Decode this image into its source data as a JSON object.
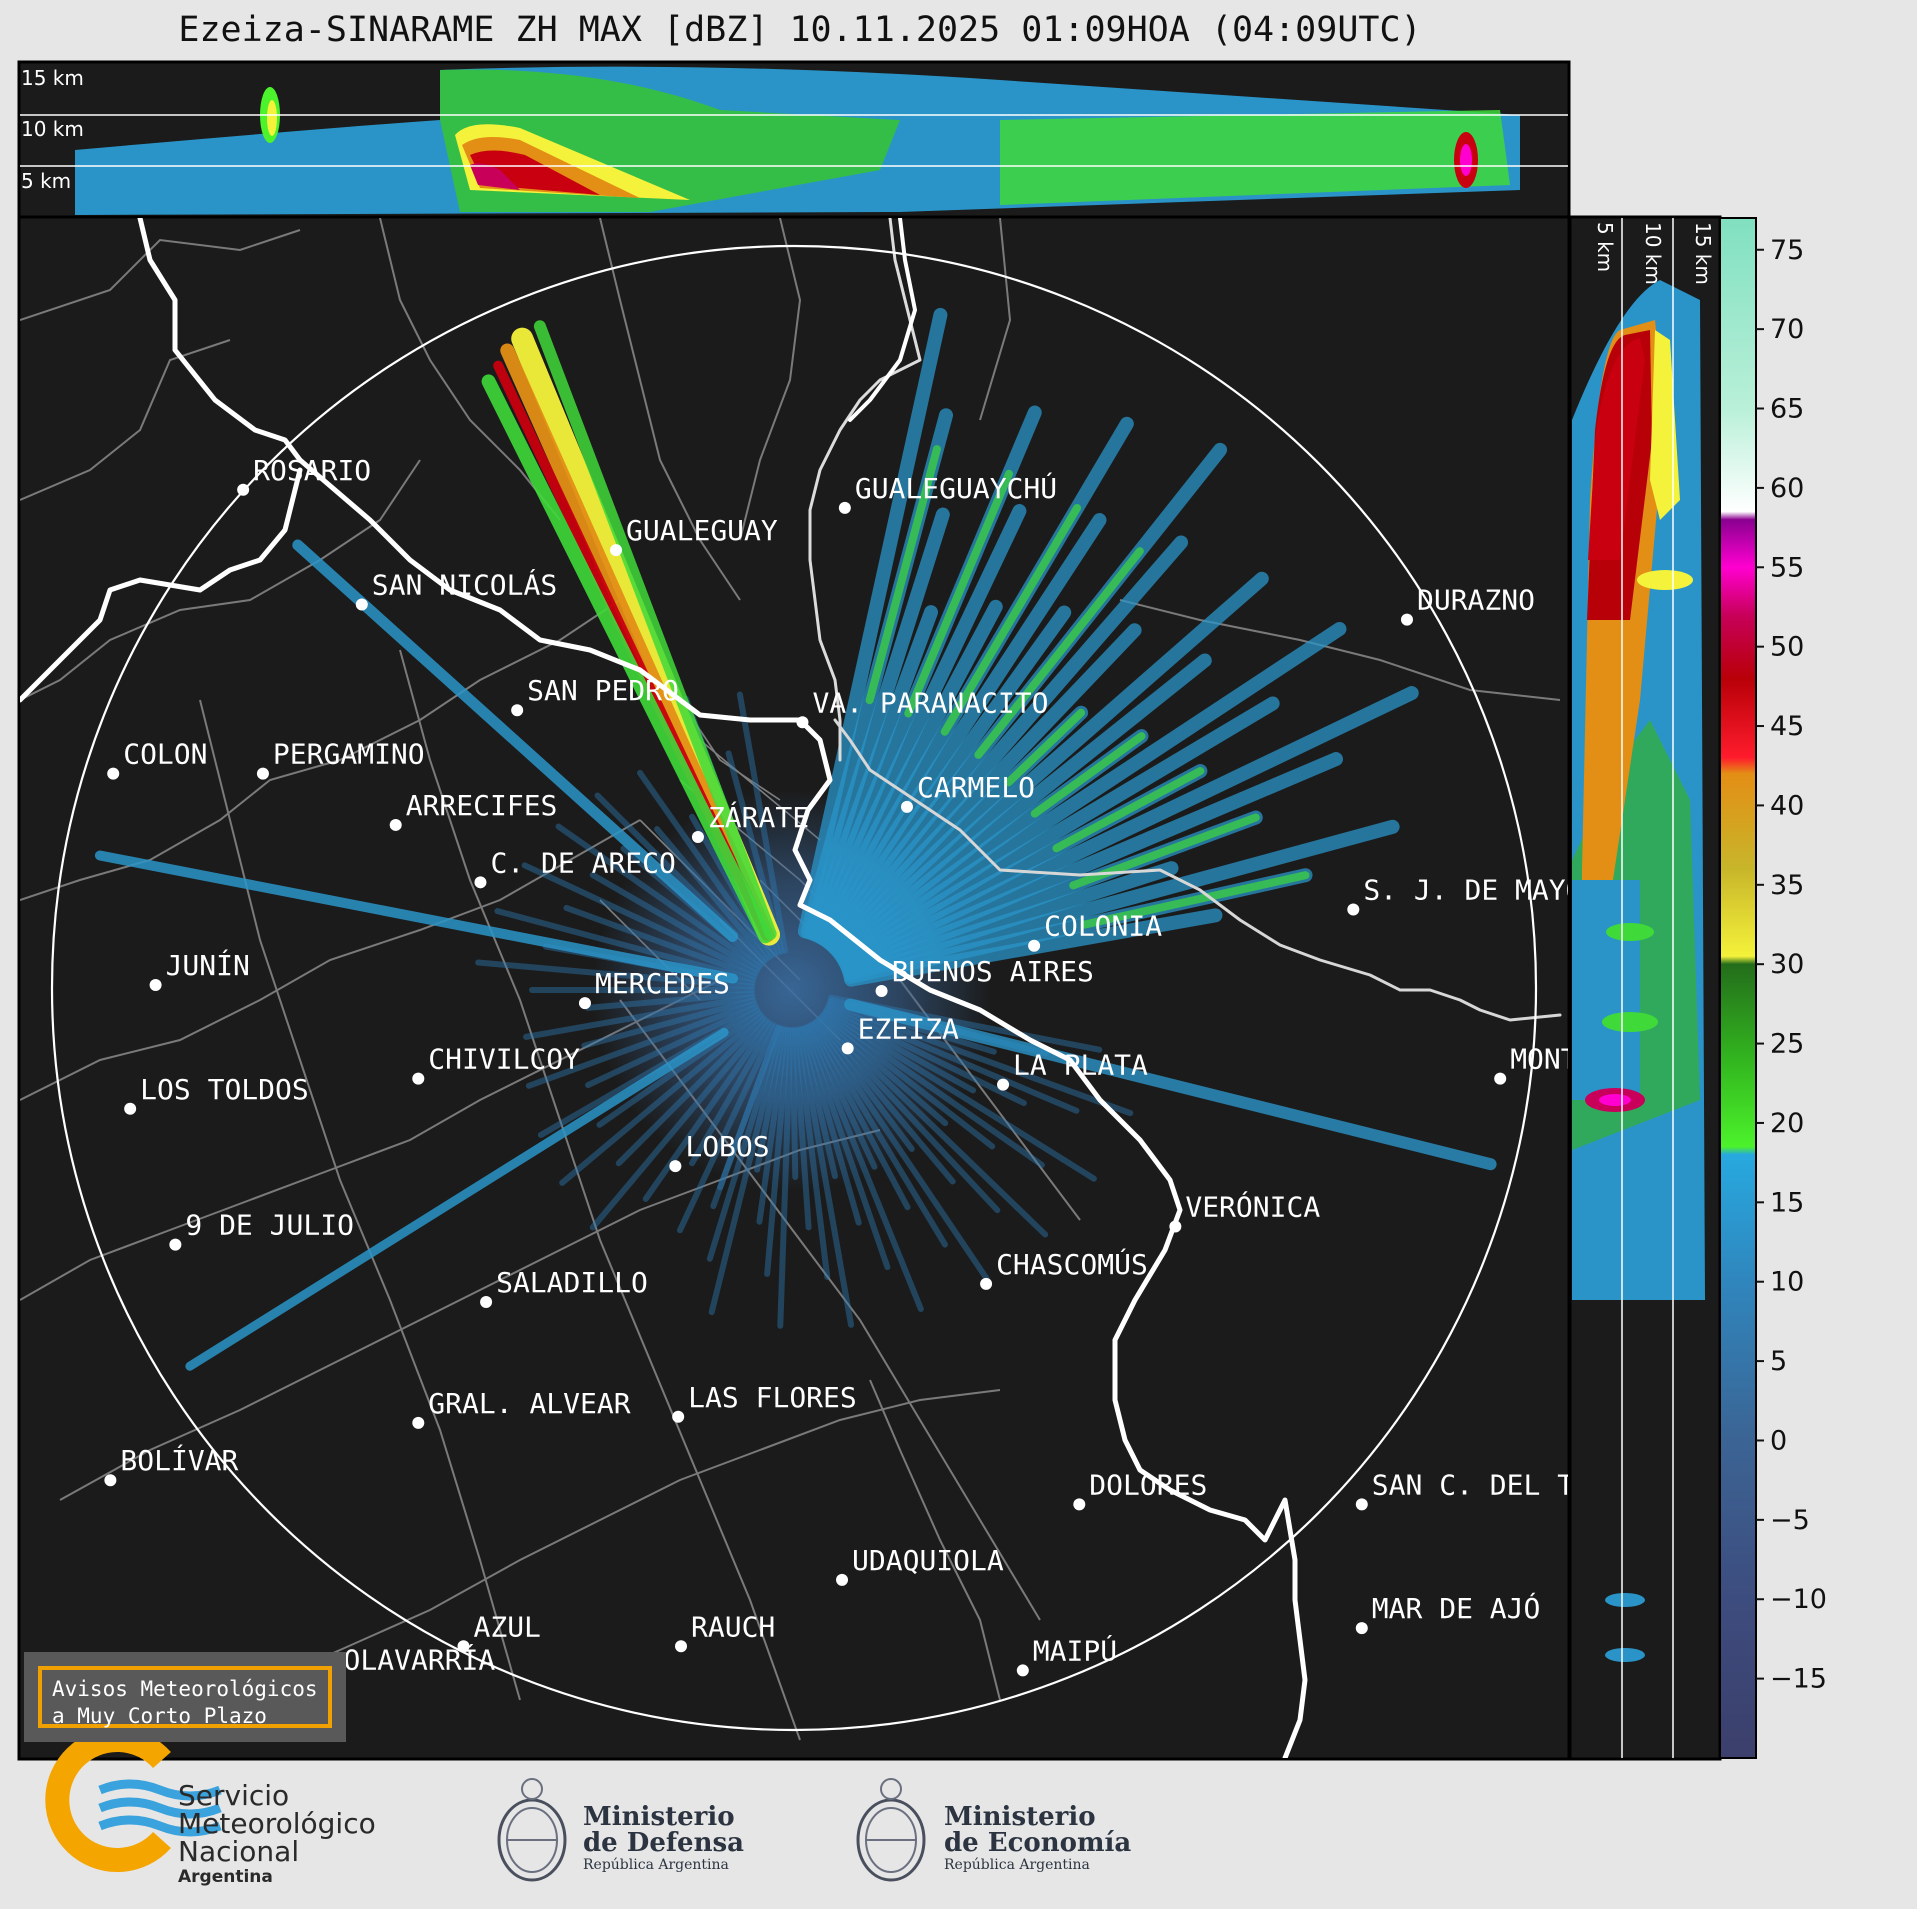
{
  "title": "Ezeiza-SINARAME ZH MAX [dBZ] 10.11.2025 01:09HOA (04:09UTC)",
  "product": "ZH MAX",
  "units": "dBZ",
  "height_labels_top": [
    "15 km",
    "10 km",
    "5 km"
  ],
  "height_labels_side": [
    "5 km",
    "10 km",
    "15 km"
  ],
  "colorbar": {
    "ticks": [
      75,
      70,
      65,
      60,
      55,
      50,
      45,
      40,
      35,
      30,
      25,
      20,
      15,
      10,
      5,
      0,
      -5,
      -10,
      -15
    ],
    "range": [
      -20,
      77
    ],
    "stops": [
      {
        "v": -20,
        "c": "#3c3f6b"
      },
      {
        "v": -10,
        "c": "#3d4c7e"
      },
      {
        "v": 0,
        "c": "#3b6494"
      },
      {
        "v": 10,
        "c": "#2f86bd"
      },
      {
        "v": 18,
        "c": "#27a9df"
      },
      {
        "v": 18.5,
        "c": "#4cf22b"
      },
      {
        "v": 24,
        "c": "#32b51f"
      },
      {
        "v": 30,
        "c": "#246d1b"
      },
      {
        "v": 30.5,
        "c": "#f4f23a"
      },
      {
        "v": 36,
        "c": "#c8b62a"
      },
      {
        "v": 42,
        "c": "#e38e15"
      },
      {
        "v": 43,
        "c": "#ff1c2c"
      },
      {
        "v": 48,
        "c": "#b80008"
      },
      {
        "v": 52,
        "c": "#c8005a"
      },
      {
        "v": 55,
        "c": "#ff00d0"
      },
      {
        "v": 58,
        "c": "#8a0090"
      },
      {
        "v": 58.5,
        "c": "#ffffff"
      },
      {
        "v": 65,
        "c": "#b9f0d9"
      },
      {
        "v": 77,
        "c": "#80e0c0"
      }
    ]
  },
  "cities": [
    {
      "name": "ROSARIO",
      "lon": -60.64,
      "lat": -32.95
    },
    {
      "name": "SAN NICOLÁS",
      "lon": -60.22,
      "lat": -33.33
    },
    {
      "name": "GUALEGUAY",
      "lon": -59.32,
      "lat": -33.15
    },
    {
      "name": "GUALEGUAYCHÚ",
      "lon": -58.51,
      "lat": -33.01
    },
    {
      "name": "DURAZNO",
      "lon": -56.52,
      "lat": -33.38
    },
    {
      "name": "SAN PEDRO",
      "lon": -59.67,
      "lat": -33.68
    },
    {
      "name": "VA. PARANACITO",
      "lon": -58.66,
      "lat": -33.72
    },
    {
      "name": "COLON",
      "lon": -61.1,
      "lat": -33.89
    },
    {
      "name": "PERGAMINO",
      "lon": -60.57,
      "lat": -33.89
    },
    {
      "name": "CARMELO",
      "lon": -58.29,
      "lat": -34.0
    },
    {
      "name": "ARRECIFES",
      "lon": -60.1,
      "lat": -34.06
    },
    {
      "name": "ZÁRATE",
      "lon": -59.03,
      "lat": -34.1
    },
    {
      "name": "S. J. DE MAYO",
      "lon": -56.71,
      "lat": -34.34
    },
    {
      "name": "C. DE ARECO",
      "lon": -59.8,
      "lat": -34.25
    },
    {
      "name": "COLONIA",
      "lon": -57.84,
      "lat": -34.46
    },
    {
      "name": "JUNÍN",
      "lon": -60.95,
      "lat": -34.59
    },
    {
      "name": "MERCEDES",
      "lon": -59.43,
      "lat": -34.65
    },
    {
      "name": "BUENOS AIRES",
      "lon": -58.38,
      "lat": -34.61
    },
    {
      "name": "MONTEVIDEO",
      "lon": -56.19,
      "lat": -34.9
    },
    {
      "name": "EZEIZA",
      "lon": -58.5,
      "lat": -34.8
    },
    {
      "name": "CHIVILCOY",
      "lon": -60.02,
      "lat": -34.9
    },
    {
      "name": "LA PLATA",
      "lon": -57.95,
      "lat": -34.92
    },
    {
      "name": "LOS TOLDOS",
      "lon": -61.04,
      "lat": -35.0
    },
    {
      "name": "LOBOS",
      "lon": -59.11,
      "lat": -35.19
    },
    {
      "name": "VERÓNICA",
      "lon": -57.34,
      "lat": -35.39
    },
    {
      "name": "9 DE JULIO",
      "lon": -60.88,
      "lat": -35.45
    },
    {
      "name": "CHASCOMÚS",
      "lon": -58.01,
      "lat": -35.58
    },
    {
      "name": "SALADILLO",
      "lon": -59.78,
      "lat": -35.64
    },
    {
      "name": "GRAL. ALVEAR",
      "lon": -60.02,
      "lat": -36.04
    },
    {
      "name": "LAS FLORES",
      "lon": -59.1,
      "lat": -36.02
    },
    {
      "name": "BOLÍVAR",
      "lon": -61.11,
      "lat": -36.23
    },
    {
      "name": "DOLORES",
      "lon": -57.68,
      "lat": -36.31
    },
    {
      "name": "SAN C. DEL TUYÚ",
      "lon": -56.68,
      "lat": -36.31
    },
    {
      "name": "UDAQUIOLA",
      "lon": -58.52,
      "lat": -36.56
    },
    {
      "name": "MAR DE AJÓ",
      "lon": -56.68,
      "lat": -36.72
    },
    {
      "name": "AZUL",
      "lon": -59.86,
      "lat": -36.78
    },
    {
      "name": "RAUCH",
      "lon": -59.09,
      "lat": -36.78
    },
    {
      "name": "OLAVARRÍA",
      "lon": -60.32,
      "lat": -36.89
    },
    {
      "name": "MAIPÚ",
      "lon": -57.88,
      "lat": -36.86
    }
  ],
  "radar": {
    "name": "Ezeiza",
    "range_km": 240
  },
  "avisos": "Avisos Meteorológicos\na Muy Corto Plazo",
  "logos": {
    "smn": {
      "line1": "Servicio",
      "line2": "Meteorológico",
      "line3": "Nacional",
      "country": "Argentina"
    },
    "defensa": {
      "line1": "Ministerio",
      "line2": "de Defensa",
      "sub": "República Argentina"
    },
    "economia": {
      "line1": "Ministerio",
      "line2": "de Economía",
      "sub": "República Argentina"
    }
  }
}
